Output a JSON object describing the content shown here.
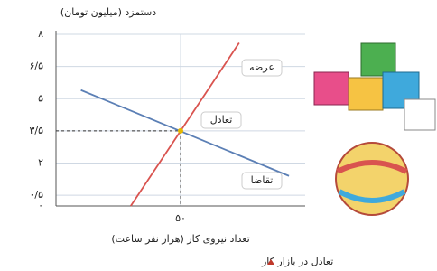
{
  "chart_data": {
    "type": "line",
    "y_label": "دستمزد (میلیون تومان)",
    "x_label": "تعداد نیروی کار (هزار نفر ساعت)",
    "caption": "تعادل در بازار کار",
    "xlim": [
      0,
      100
    ],
    "ylim": [
      0,
      8
    ],
    "xticks": [
      {
        "value": 50,
        "label": "۵۰"
      }
    ],
    "yticks": [
      {
        "value": 0,
        "label": "۰"
      },
      {
        "value": 0.5,
        "label": "۰/۵"
      },
      {
        "value": 2,
        "label": "۲"
      },
      {
        "value": 3.5,
        "label": "۳/۵"
      },
      {
        "value": 5,
        "label": "۵"
      },
      {
        "value": 6.5,
        "label": "۶/۵"
      },
      {
        "value": 8,
        "label": "۸"
      }
    ],
    "grid": true,
    "series": [
      {
        "name": "عرضه",
        "color": "#d9534f",
        "x": [
          30,
          73.5
        ],
        "values": [
          0,
          7.6
        ]
      },
      {
        "name": "تقاضا",
        "color": "#5b7fb5",
        "x": [
          10,
          93.5
        ],
        "values": [
          5.4,
          1.4
        ]
      }
    ],
    "equilibrium": {
      "label": "تعادل",
      "x": 50,
      "y": 3.5
    }
  }
}
